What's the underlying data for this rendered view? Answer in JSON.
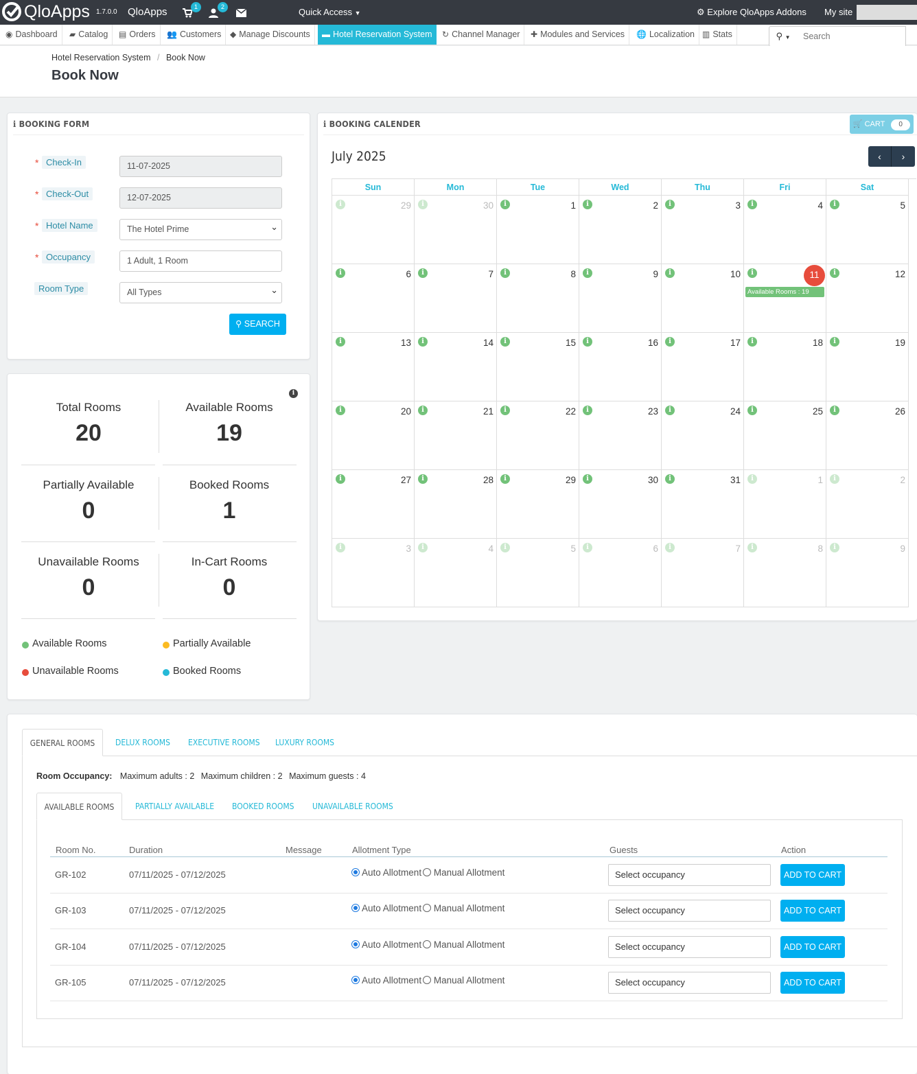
{
  "topbar": {
    "logo": "QloApps",
    "version": "1.7.0.0",
    "shop_name": "QloApps",
    "cart_badge": "1",
    "customer_badge": "2",
    "quick_access": "Quick Access",
    "explore": "Explore QloApps Addons",
    "my_site": "My site"
  },
  "nav": {
    "items": [
      "Dashboard",
      "Catalog",
      "Orders",
      "Customers",
      "Manage Discounts",
      "Hotel Reservation System",
      "Channel Manager",
      "Modules and Services",
      "Localization",
      "Stats"
    ],
    "search_placeholder": "Search"
  },
  "breadcrumb": {
    "parent": "Hotel Reservation System",
    "separator": "/",
    "current": "Book Now"
  },
  "page_title": "Book Now",
  "booking_form": {
    "title": "BOOKING FORM",
    "checkin_label": "Check-In",
    "checkin_value": "11-07-2025",
    "checkout_label": "Check-Out",
    "checkout_value": "12-07-2025",
    "hotel_label": "Hotel Name",
    "hotel_value": "The Hotel Prime",
    "occupancy_label": "Occupancy",
    "occupancy_value": "1 Adult, 1 Room",
    "roomtype_label": "Room Type",
    "roomtype_value": "All Types",
    "search_button": "SEARCH"
  },
  "stats": {
    "total_label": "Total Rooms",
    "total": "20",
    "available_label": "Available Rooms",
    "available": "19",
    "partial_label": "Partially Available",
    "partial": "0",
    "booked_label": "Booked Rooms",
    "booked": "1",
    "unavailable_label": "Unavailable Rooms",
    "unavailable": "0",
    "incart_label": "In-Cart Rooms",
    "incart": "0"
  },
  "legend": {
    "available": "Available Rooms",
    "partial": "Partially Available",
    "unavailable": "Unavailable Rooms",
    "booked": "Booked Rooms"
  },
  "colors": {
    "available": "#72c279",
    "partial": "#fbbb22",
    "unavailable": "#e74c3c",
    "booked": "#25b9d7"
  },
  "calendar": {
    "title": "BOOKING CALENDER",
    "cart_label": "CART",
    "cart_count": "0",
    "month": "July 2025",
    "days": [
      "Sun",
      "Mon",
      "Tue",
      "Wed",
      "Thu",
      "Fri",
      "Sat"
    ],
    "weeks": [
      [
        "29",
        "30",
        "1",
        "2",
        "3",
        "4",
        "5"
      ],
      [
        "6",
        "7",
        "8",
        "9",
        "10",
        "11",
        "12"
      ],
      [
        "13",
        "14",
        "15",
        "16",
        "17",
        "18",
        "19"
      ],
      [
        "20",
        "21",
        "22",
        "23",
        "24",
        "25",
        "26"
      ],
      [
        "27",
        "28",
        "29",
        "30",
        "31",
        "1",
        "2"
      ],
      [
        "3",
        "4",
        "5",
        "6",
        "7",
        "8",
        "9"
      ]
    ],
    "selected_day": "11",
    "selected_note": "Available Rooms : 19"
  },
  "room_tabs": [
    "GENERAL ROOMS",
    "DELUX ROOMS",
    "EXECUTIVE ROOMS",
    "LUXURY ROOMS"
  ],
  "occupancy": {
    "label": "Room Occupancy:",
    "adults": "Maximum adults : 2",
    "children": "Maximum children : 2",
    "guests": "Maximum guests : 4"
  },
  "status_tabs": [
    "AVAILABLE ROOMS",
    "PARTIALLY AVAILABLE",
    "BOOKED ROOMS",
    "UNAVAILABLE ROOMS"
  ],
  "table": {
    "headers": [
      "Room No.",
      "Duration",
      "Message",
      "Allotment Type",
      "Guests",
      "Action"
    ],
    "rows": [
      {
        "room": "GR-102",
        "duration": "07/11/2025 - 07/12/2025"
      },
      {
        "room": "GR-103",
        "duration": "07/11/2025 - 07/12/2025"
      },
      {
        "room": "GR-104",
        "duration": "07/11/2025 - 07/12/2025"
      },
      {
        "room": "GR-105",
        "duration": "07/11/2025 - 07/12/2025"
      }
    ],
    "auto_label": "Auto Allotment",
    "manual_label": "Manual Allotment",
    "guests_placeholder": "Select occupancy",
    "action_label": "ADD TO CART"
  }
}
